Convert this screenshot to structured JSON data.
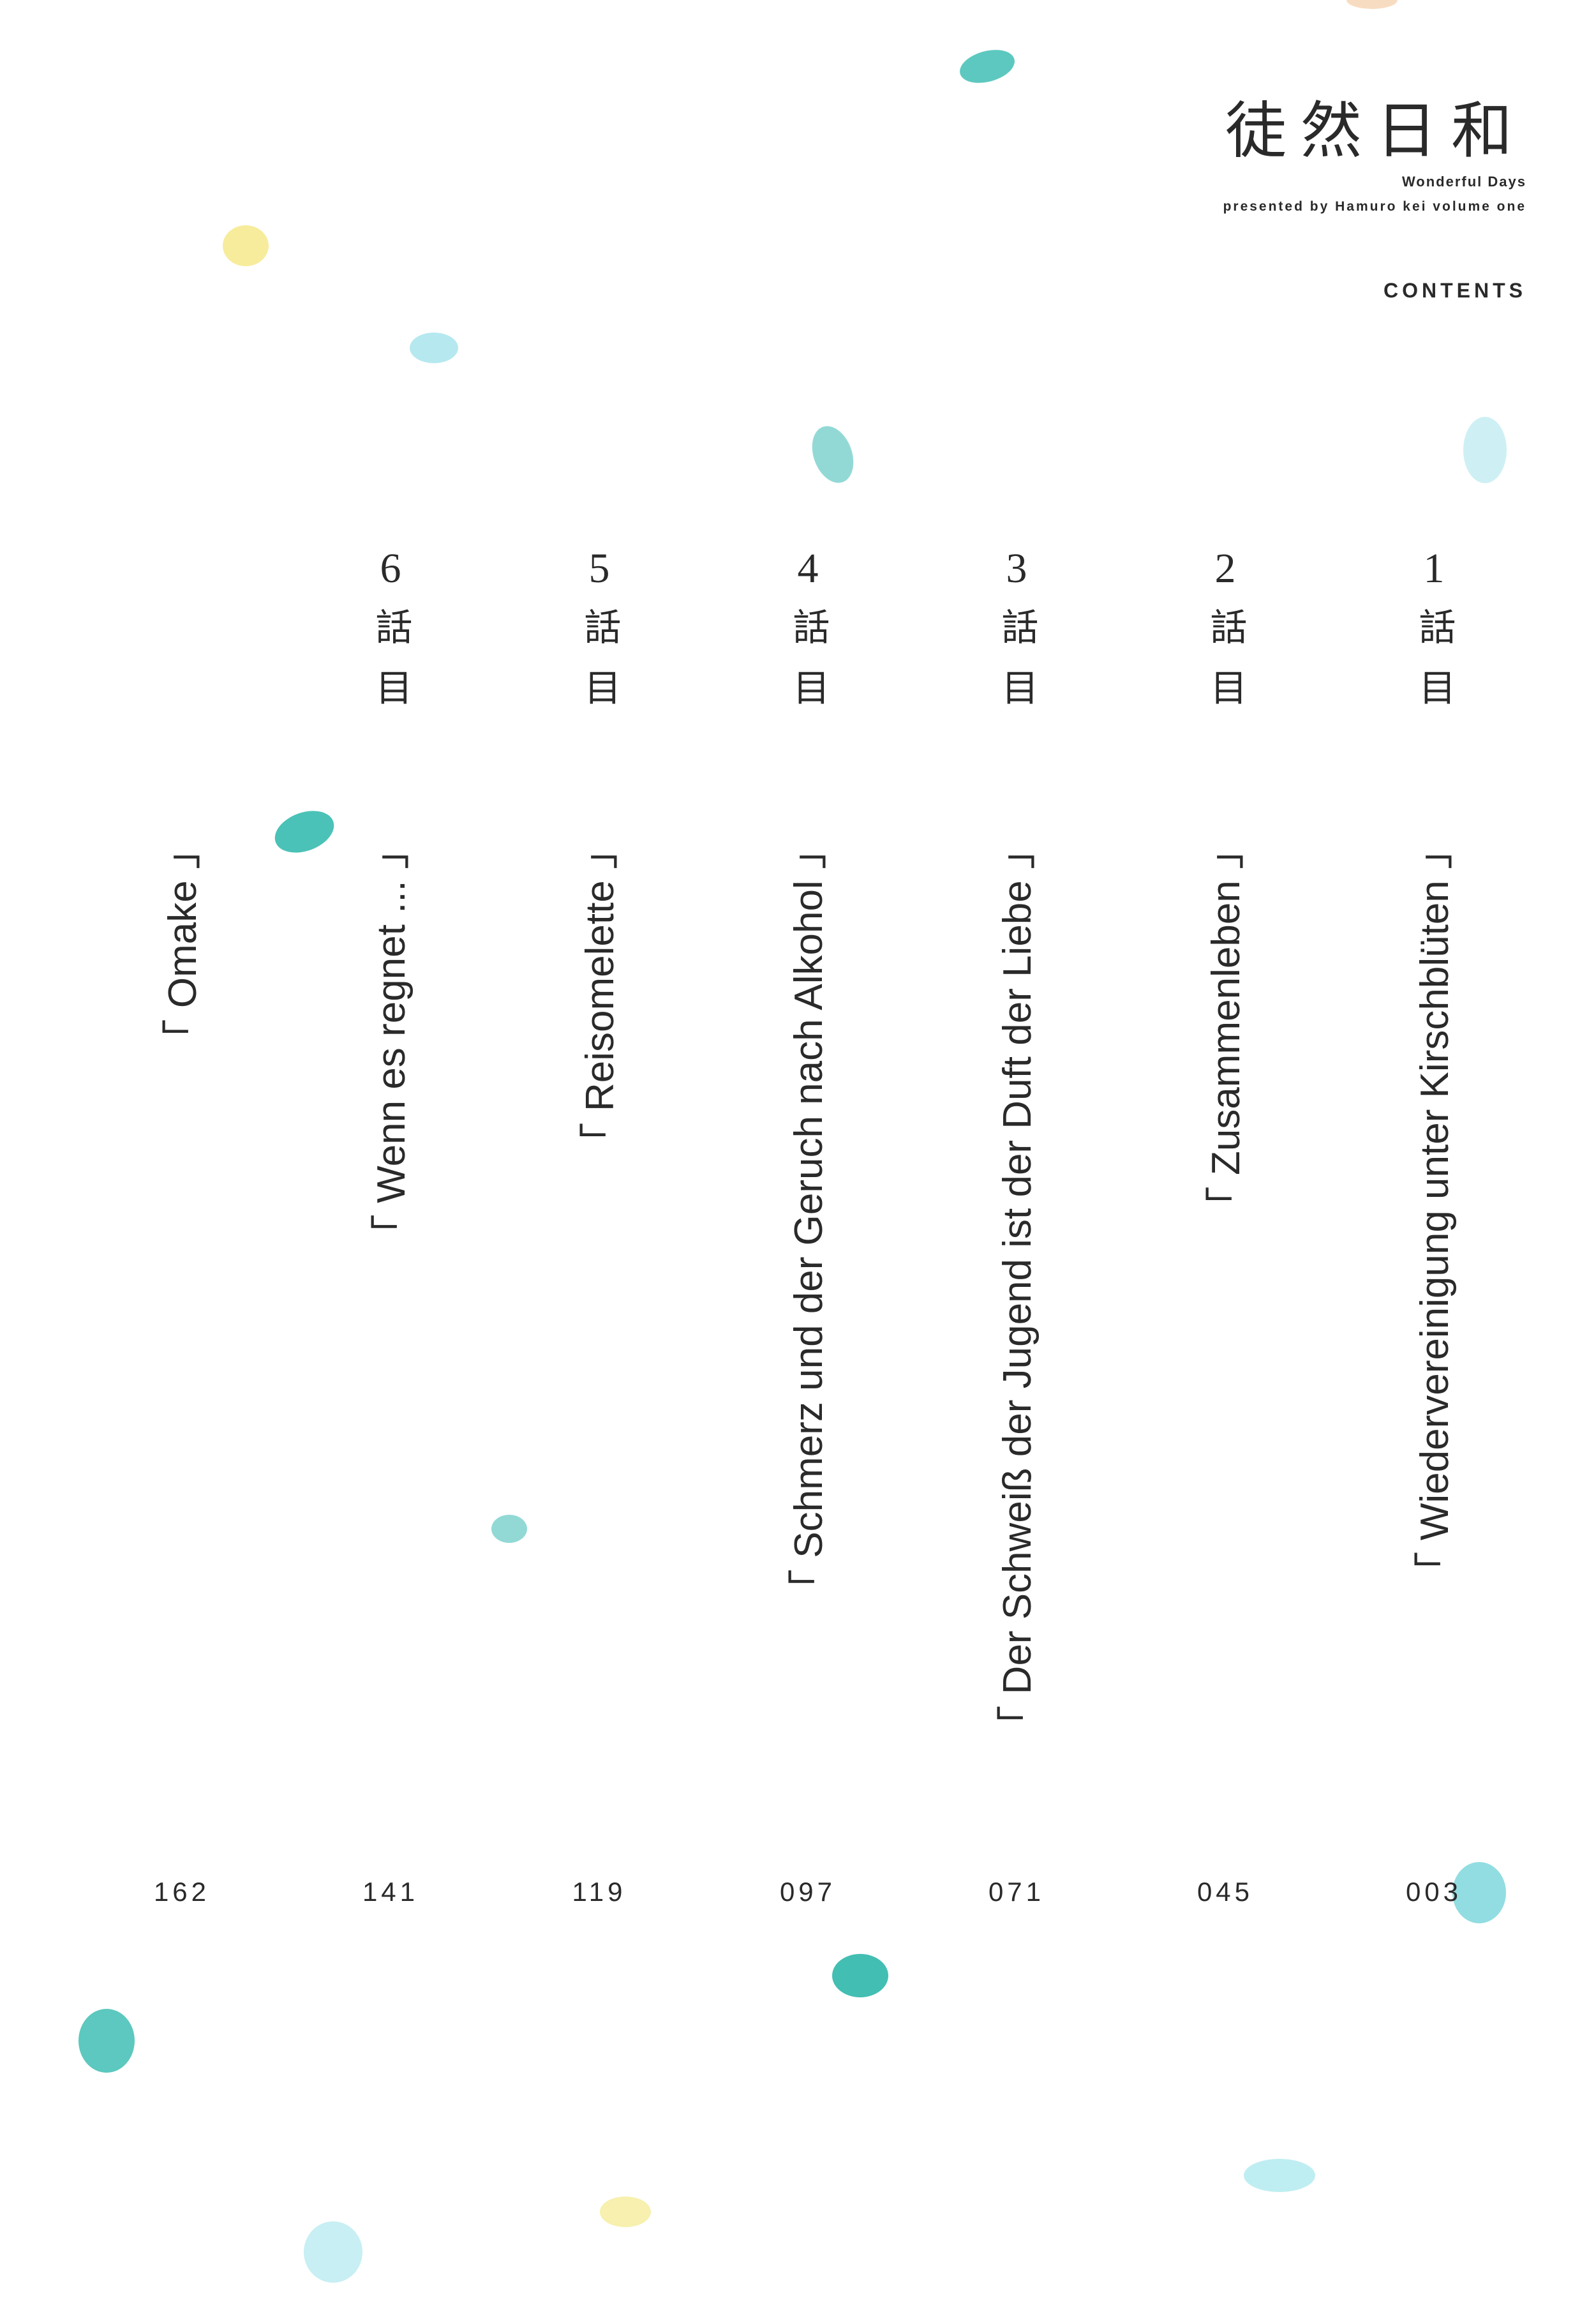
{
  "header": {
    "title": "徒然日和",
    "subtitle": "Wonderful Days",
    "byline": "presented by Hamuro kei volume one",
    "section": "CONTENTS"
  },
  "chapters": [
    {
      "number": "1",
      "counter": "話目",
      "title": "「 Wiedervereinigung unter Kirschblüten 」",
      "page": "003"
    },
    {
      "number": "2",
      "counter": "話目",
      "title": "「 Zusammenleben 」",
      "page": "045"
    },
    {
      "number": "3",
      "counter": "話目",
      "title": "「 Der Schweiß der Jugend ist der Duft der Liebe 」",
      "page": "071"
    },
    {
      "number": "4",
      "counter": "話目",
      "title": "「 Schmerz und der Geruch nach Alkohol 」",
      "page": "097"
    },
    {
      "number": "5",
      "counter": "話目",
      "title": "「 Reisomelette 」",
      "page": "119"
    },
    {
      "number": "6",
      "counter": "話目",
      "title": "「 Wenn es regnet ... 」",
      "page": "141"
    }
  ],
  "omake": {
    "title": "「 Omake 」",
    "page": "162"
  }
}
